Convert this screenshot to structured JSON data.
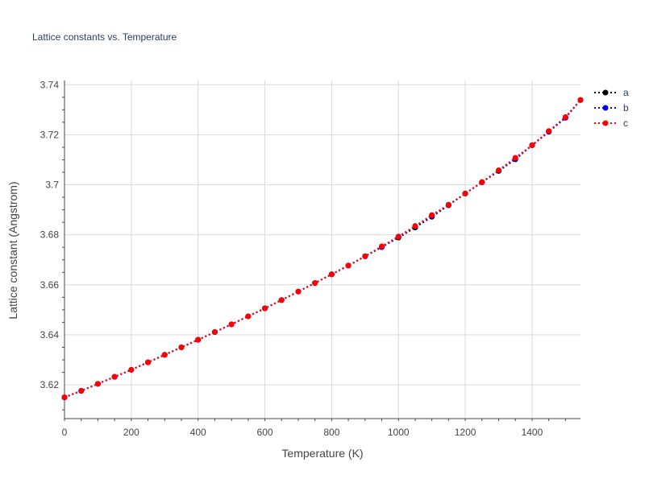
{
  "chart_data": {
    "type": "line",
    "title": "Lattice constants vs. Temperature",
    "xlabel": "Temperature (K)",
    "ylabel": "Lattice constant (Angstrom)",
    "xlim": [
      0,
      1545
    ],
    "ylim": [
      3.6065,
      3.7417
    ],
    "xticks": [
      0,
      200,
      400,
      600,
      800,
      1000,
      1200,
      1400
    ],
    "yticks": [
      3.62,
      3.64,
      3.66,
      3.68,
      3.7,
      3.72,
      3.74
    ],
    "xtick_labels": [
      "0",
      "200",
      "400",
      "600",
      "800",
      "1000",
      "1200",
      "1400"
    ],
    "ytick_labels": [
      "3.62",
      "3.64",
      "3.66",
      "3.68",
      "3.7",
      "3.72",
      "3.74"
    ],
    "grid": true,
    "legend_position": "top-right",
    "line_style": "dotted with circle markers",
    "x": [
      0,
      50,
      100,
      150,
      200,
      250,
      300,
      350,
      400,
      450,
      500,
      550,
      600,
      650,
      700,
      750,
      800,
      850,
      900,
      950,
      1000,
      1050,
      1100,
      1150,
      1200,
      1250,
      1300,
      1350,
      1400,
      1450,
      1500,
      1545
    ],
    "series": [
      {
        "name": "a",
        "color": "#000000",
        "values": [
          3.615,
          3.6176,
          3.6204,
          3.6232,
          3.626,
          3.629,
          3.632,
          3.635,
          3.638,
          3.6411,
          3.6442,
          3.6474,
          3.6506,
          3.6539,
          3.6573,
          3.6607,
          3.6642,
          3.6677,
          3.6714,
          3.6751,
          3.6789,
          3.6829,
          3.6872,
          3.6918,
          3.6965,
          3.701,
          3.7055,
          3.7102,
          3.7158,
          3.7212,
          3.7268,
          3.7339
        ]
      },
      {
        "name": "b",
        "color": "#0000ff",
        "values": [
          3.615,
          3.6176,
          3.6204,
          3.6232,
          3.626,
          3.629,
          3.632,
          3.635,
          3.638,
          3.6411,
          3.6442,
          3.6474,
          3.6506,
          3.6539,
          3.6573,
          3.6607,
          3.6642,
          3.6677,
          3.6714,
          3.6751,
          3.6793,
          3.6835,
          3.6876,
          3.692,
          3.6965,
          3.701,
          3.7057,
          3.7104,
          3.7158,
          3.7212,
          3.7268,
          3.7339
        ]
      },
      {
        "name": "c",
        "color": "#ff0000",
        "values": [
          3.615,
          3.6176,
          3.6204,
          3.6232,
          3.626,
          3.629,
          3.632,
          3.635,
          3.638,
          3.6411,
          3.6442,
          3.6474,
          3.6506,
          3.6539,
          3.6573,
          3.6607,
          3.6642,
          3.6677,
          3.6714,
          3.6754,
          3.6793,
          3.6835,
          3.6879,
          3.692,
          3.6965,
          3.7011,
          3.7058,
          3.7108,
          3.7158,
          3.7215,
          3.7271,
          3.7339
        ]
      }
    ]
  }
}
